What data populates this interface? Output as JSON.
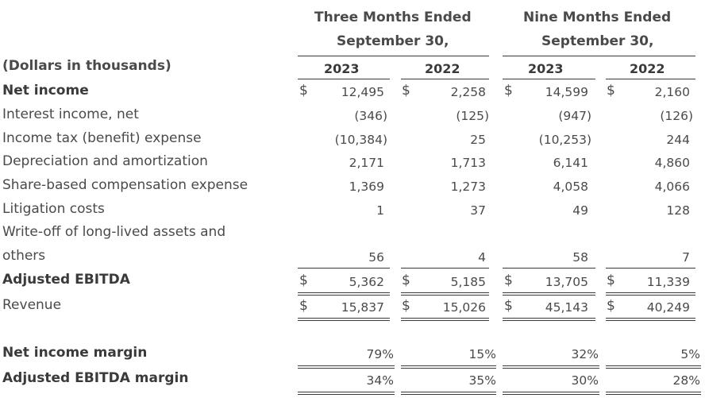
{
  "header": {
    "three_months_line1": "Three Months Ended",
    "three_months_line2": "September 30,",
    "nine_months_line1": "Nine Months Ended",
    "nine_months_line2": "September 30,",
    "units_label": "(Dollars in thousands)",
    "years": [
      "2023",
      "2022",
      "2023",
      "2022"
    ]
  },
  "currency_symbol": "$",
  "rows": [
    {
      "label": "Net income",
      "values": [
        "12,495",
        "2,258",
        "14,599",
        "2,160"
      ]
    },
    {
      "label": "Interest income, net",
      "values": [
        "(346)",
        "(125)",
        "(947)",
        "(126)"
      ]
    },
    {
      "label": "Income tax (benefit) expense",
      "values": [
        "(10,384)",
        "25",
        "(10,253)",
        "244"
      ]
    },
    {
      "label": "Depreciation and amortization",
      "values": [
        "2,171",
        "1,713",
        "6,141",
        "4,860"
      ]
    },
    {
      "label": "Share-based compensation expense",
      "values": [
        "1,369",
        "1,273",
        "4,058",
        "4,066"
      ]
    },
    {
      "label": "Litigation costs",
      "values": [
        "1",
        "37",
        "49",
        "128"
      ]
    },
    {
      "label_line1": "Write-off of long-lived assets and",
      "label_line2": "others",
      "values": [
        "56",
        "4",
        "58",
        "7"
      ]
    },
    {
      "label": "Adjusted EBITDA",
      "values": [
        "5,362",
        "5,185",
        "13,705",
        "11,339"
      ]
    },
    {
      "label": "Revenue",
      "values": [
        "15,837",
        "15,026",
        "45,143",
        "40,249"
      ]
    },
    {
      "label": "Net income margin",
      "values": [
        "79%",
        "15%",
        "32%",
        "5%"
      ]
    },
    {
      "label": "Adjusted EBITDA margin",
      "values": [
        "34%",
        "35%",
        "30%",
        "28%"
      ]
    }
  ]
}
